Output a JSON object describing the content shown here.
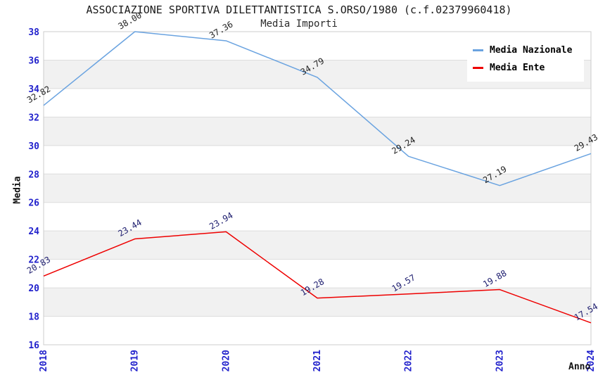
{
  "chart_data": {
    "type": "line",
    "title": "ASSOCIAZIONE SPORTIVA DILETTANTISTICA S.ORSO/1980 (c.f.02379960418)",
    "subtitle": "Media Importi",
    "xlabel": "Anno",
    "ylabel": "Media",
    "categories": [
      "2018",
      "2019",
      "2020",
      "2021",
      "2022",
      "2023",
      "2024"
    ],
    "ylim": [
      16,
      38
    ],
    "ytick_step": 2,
    "grid": "horizontal-bands",
    "legend_position": "top-right",
    "series": [
      {
        "name": "Media Nazionale",
        "color": "#6aa3e0",
        "label_color": "#222222",
        "values": [
          32.82,
          38.0,
          37.36,
          34.79,
          29.24,
          27.19,
          29.43
        ]
      },
      {
        "name": "Media Ente",
        "color": "#ee0000",
        "label_color": "#1c1c6e",
        "values": [
          20.83,
          23.44,
          23.94,
          19.28,
          19.57,
          19.88,
          17.54
        ]
      }
    ],
    "colors": {
      "tick_label": "#2222cc",
      "band_fill": "#f1f1f1",
      "grid_line": "#dddddd",
      "plot_border": "#cccccc",
      "title_color": "#1a1a1a"
    }
  }
}
